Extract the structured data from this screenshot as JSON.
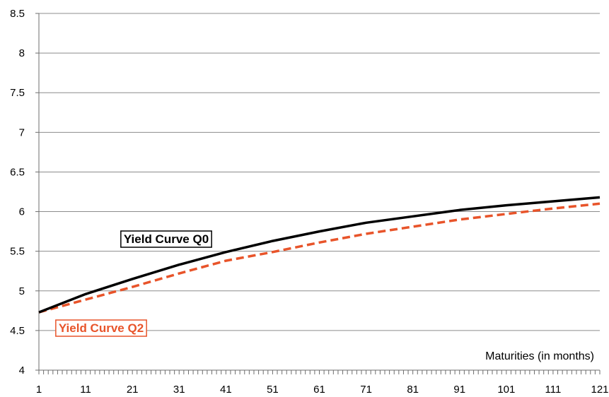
{
  "chart_data": {
    "type": "line",
    "title": "",
    "xlabel": "Maturities (in months)",
    "ylabel": "",
    "xlim": [
      1,
      121
    ],
    "ylim": [
      4,
      8.5
    ],
    "grid": true,
    "legend": "inline labels (Q0 center-left, Q2 bottom-left)",
    "x_tick_labels": [
      "1",
      "11",
      "21",
      "31",
      "41",
      "51",
      "61",
      "71",
      "81",
      "91",
      "101",
      "111",
      "121"
    ],
    "y_tick_labels": [
      "4",
      "4.5",
      "5",
      "5.5",
      "6",
      "6.5",
      "7",
      "7.5",
      "8",
      "8.5"
    ],
    "x": [
      1,
      11,
      21,
      31,
      41,
      51,
      61,
      71,
      81,
      91,
      101,
      111,
      121
    ],
    "series": [
      {
        "name": "Yield Curve Q0",
        "color": "#000000",
        "style": "solid",
        "values": [
          4.73,
          4.96,
          5.15,
          5.33,
          5.49,
          5.63,
          5.75,
          5.86,
          5.94,
          6.02,
          6.08,
          6.13,
          6.18
        ]
      },
      {
        "name": "Yield Curve Q2",
        "color": "#e8542a",
        "style": "dashed",
        "values": [
          4.73,
          4.89,
          5.05,
          5.22,
          5.38,
          5.49,
          5.61,
          5.72,
          5.81,
          5.9,
          5.97,
          6.04,
          6.1
        ]
      }
    ]
  }
}
